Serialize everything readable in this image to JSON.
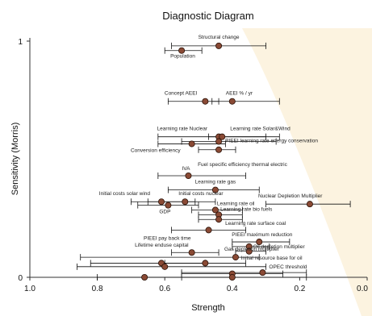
{
  "chart_data": {
    "type": "scatter",
    "title": "Diagnostic Diagram",
    "xlabel": "Strength",
    "ylabel": "Sensitivity (Morris)",
    "xlim": [
      1.0,
      0.0
    ],
    "ylim": [
      0,
      1
    ],
    "x_ticks": [
      "1.0",
      "0.8",
      "0.6",
      "0.4",
      "0.2",
      "0.0"
    ],
    "y_ticks": [
      "0",
      "1"
    ],
    "marker_color": "#8a4a35",
    "marker_edge_color": "#2a1208",
    "background_wedge_color": "#fbefd6",
    "grid": false,
    "points": [
      {
        "label": "Structural change",
        "x": 0.44,
        "y": 0.98,
        "xerr": [
          0.58,
          0.3
        ]
      },
      {
        "label": "Population",
        "x": 0.55,
        "y": 0.96,
        "xerr": [
          0.6,
          0.49
        ]
      },
      {
        "label": "Concept AEEI",
        "x": 0.48,
        "y": 0.745,
        "xerr": [
          0.59,
          0.44
        ]
      },
      {
        "label": "AEEI % / yr",
        "x": 0.4,
        "y": 0.745,
        "xerr": [
          0.46,
          0.26
        ]
      },
      {
        "label": "Learning rate Nuclear",
        "x": 0.44,
        "y": 0.595,
        "xerr": [
          0.62,
          0.3
        ]
      },
      {
        "label": "Learning rate Solar&Wind",
        "x": 0.43,
        "y": 0.595,
        "xerr": [
          0.47,
          0.26
        ]
      },
      {
        "label": "PIEEI learning rate energy conservation",
        "x": 0.44,
        "y": 0.575,
        "xerr": [
          0.55,
          0.27
        ]
      },
      {
        "label": "Conversion efficiency",
        "x": 0.52,
        "y": 0.565,
        "xerr": [
          0.62,
          0.42
        ]
      },
      {
        "label": "Fuel specific efficiency thermal electric",
        "x": 0.44,
        "y": 0.54,
        "xerr": [
          0.5,
          0.39
        ]
      },
      {
        "label": "IVA",
        "x": 0.53,
        "y": 0.43,
        "xerr": [
          0.62,
          0.36
        ]
      },
      {
        "label": "Learning rate gas",
        "x": 0.45,
        "y": 0.37,
        "xerr": [
          0.59,
          0.32
        ]
      },
      {
        "label": "Initial costs solar wind",
        "x": 0.61,
        "y": 0.32,
        "xerr": [
          0.7,
          0.51
        ]
      },
      {
        "label": "Initial costs nuclear",
        "x": 0.54,
        "y": 0.32,
        "xerr": [
          0.65,
          0.45
        ]
      },
      {
        "label": "GDP",
        "x": 0.59,
        "y": 0.305,
        "xerr": [
          0.68,
          0.5
        ]
      },
      {
        "label": "Learning rate oil",
        "x": 0.45,
        "y": 0.285,
        "xerr": [
          0.52,
          0.37
        ]
      },
      {
        "label": "Nuclear Depletion Multiplier",
        "x": 0.17,
        "y": 0.31,
        "xerr": [
          0.3,
          0.05
        ]
      },
      {
        "label": "Learning rate bio fuels",
        "x": 0.44,
        "y": 0.265,
        "xerr": [
          0.5,
          0.37
        ]
      },
      {
        "label": "Learning rate surface coal",
        "x": 0.44,
        "y": 0.245,
        "xerr": [
          0.5,
          0.37
        ]
      },
      {
        "label": "PIEEI pay back time",
        "x": 0.47,
        "y": 0.2,
        "xerr": [
          0.58,
          0.36
        ]
      },
      {
        "label": "PIEEI maximum reduction",
        "x": 0.32,
        "y": 0.15,
        "xerr": [
          0.4,
          0.23
        ]
      },
      {
        "label": "Lifetime enduse capital",
        "x": 0.52,
        "y": 0.105,
        "xerr": [
          0.58,
          0.44
        ]
      },
      {
        "label": "Oil depletion multiplier",
        "x": 0.35,
        "y": 0.13,
        "xerr": [
          0.4,
          0.29
        ]
      },
      {
        "label": "Initial resource base for oil",
        "x": 0.35,
        "y": 0.11,
        "xerr": [
          0.39,
          0.3
        ]
      },
      {
        "label": "Gas depletion multiplier",
        "x": 0.39,
        "y": 0.085,
        "xerr": [
          0.85,
          0.32
        ]
      },
      {
        "label": "",
        "x": 0.61,
        "y": 0.06,
        "xerr": [
          0.82,
          0.48
        ]
      },
      {
        "label": "",
        "x": 0.48,
        "y": 0.06,
        "xerr": [
          0.6,
          0.36
        ]
      },
      {
        "label": "",
        "x": 0.6,
        "y": 0.045,
        "xerr": [
          0.86,
          0.3
        ]
      },
      {
        "label": "OPEC threshold",
        "x": 0.31,
        "y": 0.02,
        "xerr": [
          0.55,
          0.18
        ]
      },
      {
        "label": "",
        "x": 0.4,
        "y": 0.015,
        "xerr": [
          0.55,
          0.25
        ]
      },
      {
        "label": "",
        "x": 0.4,
        "y": 0.0,
        "xerr": [
          0.55,
          0.18
        ]
      },
      {
        "label": "",
        "x": 0.66,
        "y": 0.0,
        "xerr": [
          0.8,
          0.4
        ]
      }
    ]
  }
}
